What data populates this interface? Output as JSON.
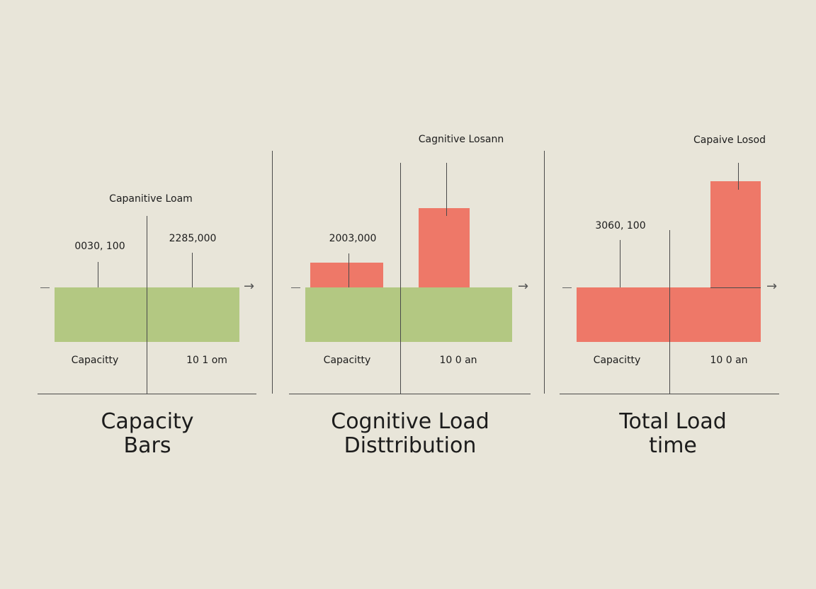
{
  "chart_data": [
    {
      "type": "bar",
      "title": [
        "Capacity",
        "Bars"
      ],
      "top_label": "Capanitive Loam",
      "annotations": [
        "0030, 100",
        "2285,000"
      ],
      "categories": [
        "Capacitty",
        "10 1 om"
      ],
      "colors": {
        "capacity": "#b3c882"
      }
    },
    {
      "type": "bar",
      "title": [
        "Cognitive Load",
        "Disttribution"
      ],
      "top_label": "Cagnitive Losann",
      "annotations": [
        "2003,000"
      ],
      "categories": [
        "Capacitty",
        "10 0 an"
      ],
      "colors": {
        "capacity": "#b3c882",
        "load": "#ee7868"
      }
    },
    {
      "type": "bar",
      "title": [
        "Total Load",
        "time"
      ],
      "top_label": "Capaive Losod",
      "annotations": [
        "3060, 100"
      ],
      "categories": [
        "Capacitty",
        "10 0 an"
      ],
      "colors": {
        "load": "#ee7868"
      }
    }
  ]
}
